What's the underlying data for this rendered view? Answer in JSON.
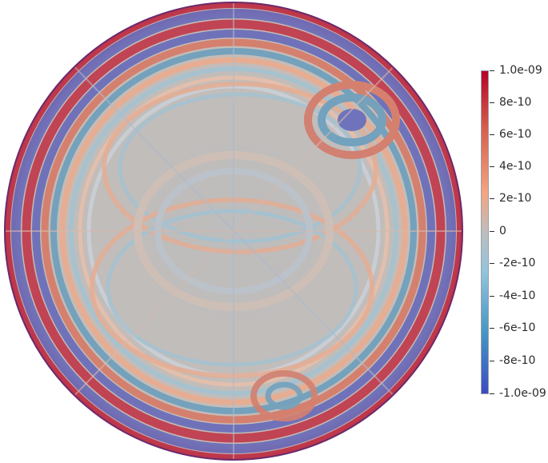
{
  "image": {
    "type": "scientific-field-plot",
    "colormap": "coolwarm",
    "value_range": [
      -1e-09,
      1e-09
    ],
    "colorbar": {
      "ticks": [
        {
          "label": "1.0e-09",
          "value": 1e-09
        },
        {
          "label": "8e-10",
          "value": 8e-10
        },
        {
          "label": "6e-10",
          "value": 6e-10
        },
        {
          "label": "4e-10",
          "value": 4e-10
        },
        {
          "label": "2e-10",
          "value": 2e-10
        },
        {
          "label": "0",
          "value": 0
        },
        {
          "label": "-2e-10",
          "value": -2e-10
        },
        {
          "label": "-4e-10",
          "value": -4e-10
        },
        {
          "label": "-6e-10",
          "value": -6e-10
        },
        {
          "label": "-8e-10",
          "value": -8e-10
        },
        {
          "label": "-1.0e-09",
          "value": -1e-09
        }
      ]
    },
    "colors": {
      "max": "#b40426",
      "mid": "#bdbdbd",
      "min": "#3b4cc0"
    }
  }
}
